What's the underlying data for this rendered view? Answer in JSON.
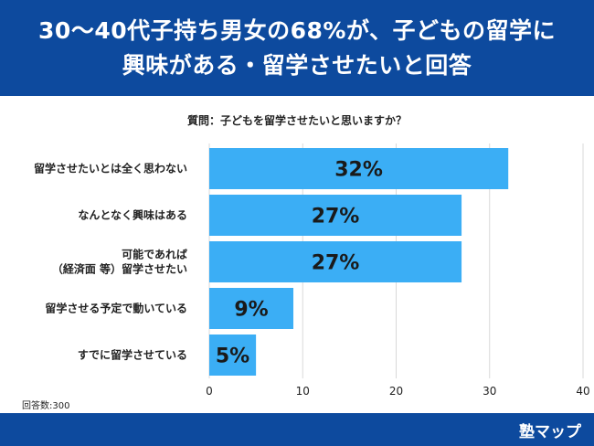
{
  "header": {
    "title_line1": "30〜40代子持ち男女の68%が、子どもの留学に",
    "title_line2": "興味がある・留学させたいと回答"
  },
  "question": "質問：子どもを留学させたいと思いますか？",
  "note": "回答数:300",
  "logo": "塾マップ",
  "colors": {
    "header_bg": "#0d4a9e",
    "bar": "#3baef5",
    "grid": "#d9d9d9"
  },
  "chart_data": {
    "type": "bar",
    "orientation": "horizontal",
    "categories": [
      [
        "留学させたいとは全く思わない"
      ],
      [
        "なんとなく興味はある"
      ],
      [
        "可能であれば",
        "（経済面 等）留学させたい"
      ],
      [
        "留学させる予定で動いている"
      ],
      [
        "すでに留学させている"
      ]
    ],
    "values": [
      32,
      27,
      27,
      9,
      5
    ],
    "value_labels": [
      "32%",
      "27%",
      "27%",
      "9%",
      "5%"
    ],
    "xlim": [
      0,
      40
    ],
    "xticks": [
      0,
      10,
      20,
      30,
      40
    ],
    "grid": true
  }
}
